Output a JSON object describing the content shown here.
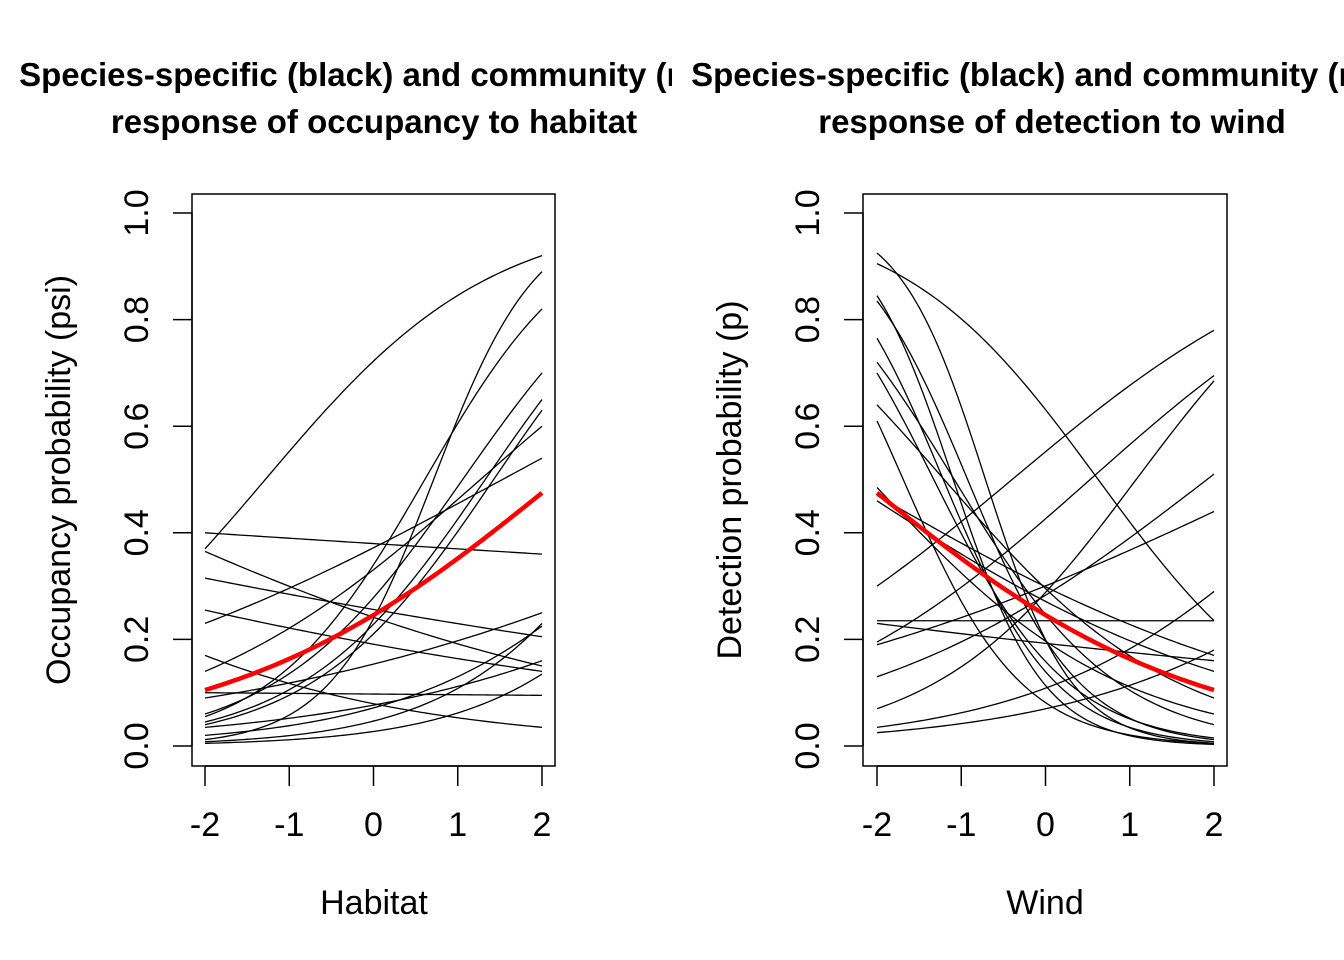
{
  "colors": {
    "species": "#000000",
    "community": "#ff0000"
  },
  "chart_data": [
    {
      "type": "line",
      "title_lines": [
        "Species-specific (black) and community (red)",
        "response of occupancy to habitat"
      ],
      "xlabel": "Habitat",
      "ylabel": "Occupancy probability (psi)",
      "xlim": [
        -2,
        2
      ],
      "ylim": [
        0,
        1
      ],
      "x_ticks": [
        -2,
        -1,
        0,
        1,
        2
      ],
      "x_tick_labels": [
        "-2",
        "-1",
        "0",
        "1",
        "2"
      ],
      "y_ticks": [
        0,
        0.2,
        0.4,
        0.6,
        0.8,
        1
      ],
      "y_tick_labels": [
        "0.0",
        "0.2",
        "0.4",
        "0.6",
        "0.8",
        "1.0"
      ],
      "species_model": "logistic",
      "species_endpoints": [
        [
          0.37,
          0.92
        ],
        [
          0.4,
          0.36
        ],
        [
          0.365,
          0.15
        ],
        [
          0.315,
          0.205
        ],
        [
          0.255,
          0.14
        ],
        [
          0.23,
          0.54
        ],
        [
          0.17,
          0.035
        ],
        [
          0.14,
          0.6
        ],
        [
          0.1,
          0.095
        ],
        [
          0.09,
          0.25
        ],
        [
          0.06,
          0.7
        ],
        [
          0.055,
          0.82
        ],
        [
          0.045,
          0.65
        ],
        [
          0.04,
          0.63
        ],
        [
          0.035,
          0.16
        ],
        [
          0.02,
          0.225
        ],
        [
          0.012,
          0.89
        ],
        [
          0.008,
          0.23
        ],
        [
          0.005,
          0.135
        ]
      ],
      "community_endpoints": [
        0.105,
        0.475
      ]
    },
    {
      "type": "line",
      "title_lines": [
        "Species-specific (black) and community (red)",
        "response of detection to wind"
      ],
      "xlabel": "Wind",
      "ylabel": "Detection probability (p)",
      "xlim": [
        -2,
        2
      ],
      "ylim": [
        0,
        1
      ],
      "x_ticks": [
        -2,
        -1,
        0,
        1,
        2
      ],
      "x_tick_labels": [
        "-2",
        "-1",
        "0",
        "1",
        "2"
      ],
      "y_ticks": [
        0,
        0.2,
        0.4,
        0.6,
        0.8,
        1
      ],
      "y_tick_labels": [
        "0.0",
        "0.2",
        "0.4",
        "0.6",
        "0.8",
        "1.0"
      ],
      "species_model": "logistic",
      "species_endpoints": [
        [
          0.925,
          0.005
        ],
        [
          0.905,
          0.235
        ],
        [
          0.845,
          0.003
        ],
        [
          0.835,
          0.012
        ],
        [
          0.765,
          0.008
        ],
        [
          0.72,
          0.04
        ],
        [
          0.7,
          0.015
        ],
        [
          0.64,
          0.09
        ],
        [
          0.61,
          0.005
        ],
        [
          0.485,
          0.06
        ],
        [
          0.47,
          0.17
        ],
        [
          0.46,
          0.14
        ],
        [
          0.3,
          0.78
        ],
        [
          0.235,
          0.235
        ],
        [
          0.23,
          0.16
        ],
        [
          0.195,
          0.695
        ],
        [
          0.19,
          0.44
        ],
        [
          0.13,
          0.51
        ],
        [
          0.07,
          0.685
        ],
        [
          0.035,
          0.29
        ],
        [
          0.025,
          0.18
        ]
      ],
      "community_endpoints": [
        0.475,
        0.105
      ]
    }
  ]
}
